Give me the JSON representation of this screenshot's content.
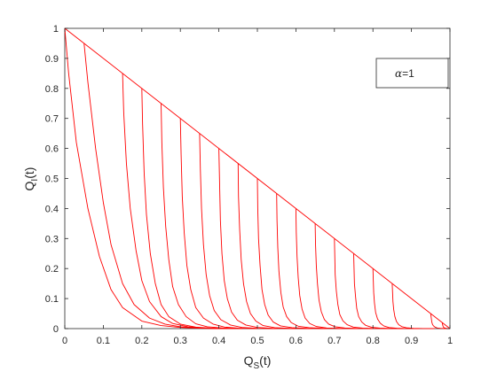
{
  "chart_data": {
    "type": "line",
    "xlabel": {
      "main": "Q",
      "sub": "S",
      "suffix": "(t)"
    },
    "ylabel": {
      "main": "Q",
      "sub": "I",
      "suffix": "(t)"
    },
    "xlim": [
      0,
      1
    ],
    "ylim": [
      0,
      1
    ],
    "xticks": [
      "0",
      "0.1",
      "0.2",
      "0.3",
      "0.4",
      "0.5",
      "0.6",
      "0.7",
      "0.8",
      "0.9",
      "1"
    ],
    "yticks": [
      "0",
      "0.1",
      "0.2",
      "0.3",
      "0.4",
      "0.5",
      "0.6",
      "0.7",
      "0.8",
      "0.9",
      "1"
    ],
    "grid": false,
    "legend": {
      "position": "top-right",
      "symbol": "α",
      "text": "=1"
    },
    "series_color": "#ff0000",
    "boundary": {
      "x": [
        0,
        1
      ],
      "y": [
        1,
        0
      ]
    },
    "series": [
      {
        "x": [
          0,
          0.01,
          0.03,
          0.06,
          0.09,
          0.12,
          0.15,
          0.2,
          0.25,
          0.3,
          0.35,
          0.4
        ],
        "y": [
          1,
          0.85,
          0.62,
          0.4,
          0.24,
          0.13,
          0.07,
          0.025,
          0.01,
          0.004,
          0.0015,
          0
        ]
      },
      {
        "x": [
          0.05,
          0.06,
          0.08,
          0.1,
          0.12,
          0.15,
          0.18,
          0.22,
          0.26,
          0.3,
          0.35,
          0.42
        ],
        "y": [
          0.95,
          0.82,
          0.6,
          0.42,
          0.28,
          0.15,
          0.08,
          0.035,
          0.015,
          0.006,
          0.002,
          0
        ]
      },
      {
        "x": [
          0.15,
          0.153,
          0.16,
          0.17,
          0.185,
          0.2,
          0.22,
          0.25,
          0.28,
          0.32,
          0.36,
          0.42
        ],
        "y": [
          0.85,
          0.72,
          0.55,
          0.4,
          0.26,
          0.16,
          0.09,
          0.04,
          0.017,
          0.006,
          0.002,
          0
        ]
      },
      {
        "x": [
          0.2,
          0.202,
          0.206,
          0.212,
          0.222,
          0.235,
          0.25,
          0.27,
          0.3,
          0.34,
          0.38,
          0.44
        ],
        "y": [
          0.8,
          0.68,
          0.52,
          0.38,
          0.25,
          0.15,
          0.08,
          0.04,
          0.015,
          0.005,
          0.0015,
          0
        ]
      },
      {
        "x": [
          0.25,
          0.252,
          0.256,
          0.262,
          0.27,
          0.28,
          0.295,
          0.315,
          0.34,
          0.37,
          0.41,
          0.46
        ],
        "y": [
          0.75,
          0.62,
          0.47,
          0.34,
          0.23,
          0.14,
          0.08,
          0.04,
          0.016,
          0.006,
          0.002,
          0
        ]
      },
      {
        "x": [
          0.3,
          0.302,
          0.305,
          0.31,
          0.317,
          0.327,
          0.34,
          0.36,
          0.385,
          0.415,
          0.45,
          0.5
        ],
        "y": [
          0.7,
          0.58,
          0.44,
          0.32,
          0.21,
          0.13,
          0.07,
          0.035,
          0.015,
          0.005,
          0.0015,
          0
        ]
      },
      {
        "x": [
          0.35,
          0.352,
          0.355,
          0.36,
          0.367,
          0.376,
          0.388,
          0.405,
          0.43,
          0.46,
          0.5,
          0.55
        ],
        "y": [
          0.65,
          0.53,
          0.4,
          0.28,
          0.18,
          0.11,
          0.06,
          0.03,
          0.012,
          0.004,
          0.001,
          0
        ]
      },
      {
        "x": [
          0.4,
          0.402,
          0.404,
          0.408,
          0.414,
          0.422,
          0.433,
          0.448,
          0.47,
          0.5,
          0.54,
          0.6
        ],
        "y": [
          0.6,
          0.48,
          0.36,
          0.25,
          0.16,
          0.1,
          0.055,
          0.028,
          0.012,
          0.004,
          0.001,
          0
        ]
      },
      {
        "x": [
          0.45,
          0.451,
          0.454,
          0.458,
          0.464,
          0.472,
          0.482,
          0.496,
          0.515,
          0.545,
          0.585,
          0.64
        ],
        "y": [
          0.55,
          0.44,
          0.33,
          0.23,
          0.15,
          0.09,
          0.05,
          0.025,
          0.01,
          0.003,
          0.001,
          0
        ]
      },
      {
        "x": [
          0.5,
          0.501,
          0.503,
          0.507,
          0.512,
          0.519,
          0.528,
          0.541,
          0.56,
          0.59,
          0.63,
          0.68
        ],
        "y": [
          0.5,
          0.4,
          0.3,
          0.21,
          0.13,
          0.08,
          0.045,
          0.022,
          0.009,
          0.003,
          0.001,
          0
        ]
      },
      {
        "x": [
          0.55,
          0.551,
          0.553,
          0.556,
          0.561,
          0.567,
          0.576,
          0.588,
          0.606,
          0.634,
          0.672,
          0.72
        ],
        "y": [
          0.45,
          0.36,
          0.27,
          0.19,
          0.12,
          0.072,
          0.04,
          0.02,
          0.008,
          0.003,
          0.001,
          0
        ]
      },
      {
        "x": [
          0.6,
          0.601,
          0.603,
          0.606,
          0.61,
          0.616,
          0.624,
          0.636,
          0.653,
          0.68,
          0.716,
          0.76
        ],
        "y": [
          0.4,
          0.32,
          0.24,
          0.17,
          0.11,
          0.065,
          0.035,
          0.017,
          0.007,
          0.002,
          0.0007,
          0
        ]
      },
      {
        "x": [
          0.65,
          0.651,
          0.653,
          0.656,
          0.66,
          0.666,
          0.674,
          0.685,
          0.702,
          0.727,
          0.76,
          0.8
        ],
        "y": [
          0.35,
          0.28,
          0.21,
          0.15,
          0.095,
          0.056,
          0.03,
          0.015,
          0.006,
          0.002,
          0.0006,
          0
        ]
      },
      {
        "x": [
          0.7,
          0.701,
          0.702,
          0.705,
          0.709,
          0.714,
          0.722,
          0.733,
          0.749,
          0.773,
          0.805,
          0.84
        ],
        "y": [
          0.3,
          0.24,
          0.18,
          0.125,
          0.08,
          0.047,
          0.026,
          0.013,
          0.005,
          0.0018,
          0.0005,
          0
        ]
      },
      {
        "x": [
          0.75,
          0.751,
          0.752,
          0.755,
          0.758,
          0.763,
          0.771,
          0.781,
          0.796,
          0.818,
          0.848,
          0.88
        ],
        "y": [
          0.25,
          0.2,
          0.15,
          0.105,
          0.067,
          0.04,
          0.022,
          0.011,
          0.0045,
          0.0015,
          0.0004,
          0
        ]
      },
      {
        "x": [
          0.8,
          0.801,
          0.802,
          0.804,
          0.807,
          0.812,
          0.819,
          0.828,
          0.842,
          0.862,
          0.89,
          0.92
        ],
        "y": [
          0.2,
          0.16,
          0.12,
          0.085,
          0.054,
          0.032,
          0.018,
          0.009,
          0.0035,
          0.0012,
          0.0003,
          0
        ]
      },
      {
        "x": [
          0.85,
          0.851,
          0.852,
          0.854,
          0.857,
          0.861,
          0.867,
          0.875,
          0.887,
          0.905,
          0.93,
          0.96
        ],
        "y": [
          0.15,
          0.12,
          0.09,
          0.063,
          0.04,
          0.024,
          0.013,
          0.0065,
          0.0026,
          0.0009,
          0.0002,
          0
        ]
      },
      {
        "x": [
          0.95,
          0.951,
          0.952,
          0.953,
          0.955,
          0.958,
          0.962,
          0.967,
          0.975,
          0.985,
          1
        ],
        "y": [
          0.05,
          0.04,
          0.03,
          0.021,
          0.013,
          0.008,
          0.0045,
          0.002,
          0.0008,
          0.0002,
          0
        ]
      },
      {
        "x": [
          0.98,
          0.9805,
          0.981,
          0.982,
          0.983,
          0.985,
          0.988,
          0.992,
          1
        ],
        "y": [
          0.02,
          0.016,
          0.012,
          0.008,
          0.005,
          0.003,
          0.0015,
          0.0005,
          0
        ]
      }
    ]
  }
}
